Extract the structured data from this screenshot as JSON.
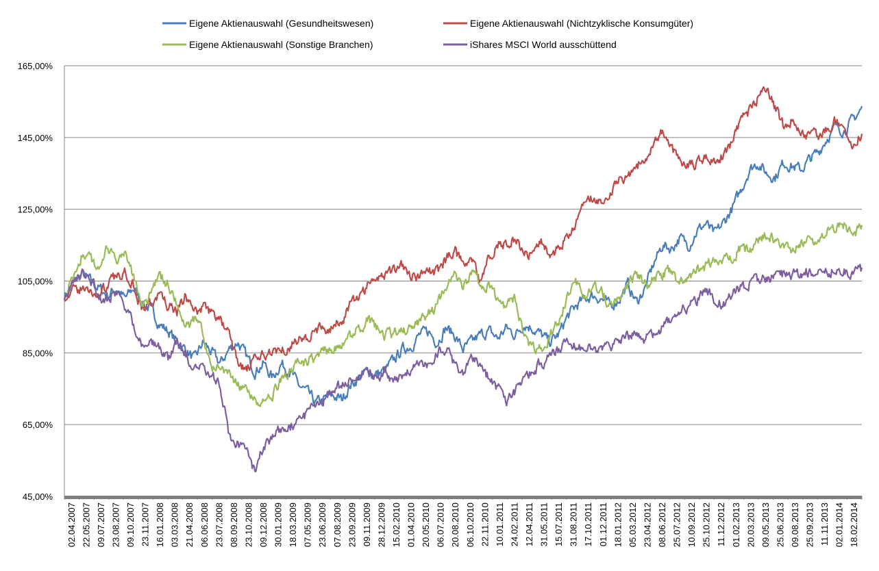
{
  "chart_data": {
    "type": "line",
    "title": "",
    "xlabel": "",
    "ylabel": "",
    "ylim": [
      45,
      165
    ],
    "y_ticks": [
      45,
      65,
      85,
      105,
      125,
      145,
      165
    ],
    "y_tick_labels": [
      "45,00%",
      "65,00%",
      "85,00%",
      "105,00%",
      "125,00%",
      "145,00%",
      "165,00%"
    ],
    "grid": true,
    "legend_position": "top",
    "x_ticks": [
      "02.04.2007",
      "22.05.2007",
      "09.07.2007",
      "23.08.2007",
      "09.10.2007",
      "23.11.2007",
      "16.01.2008",
      "03.03.2008",
      "21.04.2008",
      "06.06.2008",
      "23.07.2008",
      "08.09.2008",
      "23.10.2008",
      "09.12.2008",
      "30.01.2009",
      "18.03.2009",
      "07.05.2009",
      "23.06.2009",
      "07.08.2009",
      "23.09.2009",
      "09.11.2009",
      "28.12.2009",
      "15.02.2010",
      "01.04.2010",
      "20.05.2010",
      "06.07.2010",
      "20.08.2010",
      "06.10.2010",
      "22.11.2010",
      "10.01.2011",
      "24.02.2011",
      "12.04.2011",
      "31.05.2011",
      "15.07.2011",
      "31.08.2011",
      "17.10.2011",
      "01.12.2011",
      "18.01.2012",
      "05.03.2012",
      "23.04.2012",
      "08.06.2012",
      "25.07.2012",
      "10.09.2012",
      "25.10.2012",
      "11.12.2012",
      "01.02.2013",
      "20.03.2013",
      "09.05.2013",
      "25.06.2013",
      "09.08.2013",
      "25.09.2013",
      "11.11.2013",
      "02.01.2014",
      "18.02.2014"
    ],
    "series": [
      {
        "name": "Eigene Aktienauswahl (Gesundheitswesen)",
        "color": "#4a7ebb",
        "values": [
          101,
          104,
          107,
          105,
          103,
          101,
          103,
          100,
          103,
          99,
          97,
          93,
          91,
          88,
          86,
          83,
          88,
          85,
          82,
          86,
          88,
          84,
          80,
          82,
          78,
          82,
          80,
          76,
          74,
          71,
          72,
          73,
          72,
          76,
          78,
          80,
          79,
          80,
          83,
          86,
          87,
          90,
          91,
          88,
          92,
          90,
          86,
          88,
          90,
          91,
          89,
          92,
          90,
          93,
          92,
          90,
          88,
          90,
          95,
          98,
          100,
          101,
          100,
          98,
          100,
          104,
          99,
          103,
          110,
          115,
          114,
          117,
          115,
          119,
          121,
          118,
          121,
          125,
          130,
          136,
          138,
          135,
          134,
          138,
          137,
          136,
          139,
          141,
          145,
          148,
          147,
          150,
          153
        ]
      },
      {
        "name": "Eigene Aktienauswahl (Nichtzyklische Konsumgüter)",
        "color": "#be4b48",
        "values": [
          101,
          102,
          103,
          102,
          101,
          104,
          106,
          108,
          104,
          97,
          99,
          101,
          98,
          96,
          101,
          96,
          98,
          96,
          94,
          90,
          82,
          80,
          83,
          84,
          86,
          86,
          87,
          89,
          89,
          91,
          92,
          92,
          94,
          98,
          101,
          104,
          106,
          107,
          108,
          110,
          107,
          106,
          108,
          107,
          111,
          114,
          109,
          111,
          104,
          112,
          115,
          116,
          117,
          112,
          113,
          117,
          112,
          114,
          117,
          121,
          126,
          128,
          127,
          130,
          133,
          135,
          137,
          139,
          144,
          147,
          142,
          139,
          137,
          138,
          140,
          139,
          140,
          143,
          149,
          152,
          156,
          158,
          153,
          148,
          150,
          147,
          145,
          146,
          147,
          150,
          146,
          143,
          146
        ]
      },
      {
        "name": "Eigene Aktienauswahl (Sonstige Branchen)",
        "color": "#9bbb59",
        "values": [
          101,
          106,
          112,
          111,
          109,
          114,
          110,
          112,
          106,
          99,
          102,
          106,
          104,
          98,
          92,
          94,
          91,
          80,
          82,
          79,
          76,
          74,
          72,
          71,
          73,
          77,
          80,
          82,
          82,
          84,
          86,
          86,
          88,
          90,
          92,
          94,
          92,
          90,
          90,
          92,
          91,
          94,
          96,
          98,
          104,
          106,
          103,
          108,
          104,
          103,
          99,
          98,
          100,
          90,
          86,
          86,
          90,
          94,
          100,
          104,
          102,
          104,
          102,
          98,
          100,
          104,
          107,
          104,
          106,
          107,
          108,
          104,
          106,
          108,
          109,
          111,
          110,
          112,
          114,
          113,
          116,
          118,
          116,
          113,
          114,
          115,
          116,
          117,
          119,
          120,
          121,
          118,
          120
        ]
      },
      {
        "name": "iShares MSCI World ausschüttend",
        "color": "#7d5fa0",
        "values": [
          101,
          104,
          107,
          105,
          101,
          100,
          102,
          98,
          93,
          87,
          88,
          86,
          83,
          88,
          85,
          80,
          81,
          78,
          76,
          62,
          60,
          57,
          52,
          59,
          62,
          64,
          64,
          66,
          68,
          70,
          72,
          74,
          76,
          78,
          79,
          80,
          78,
          80,
          77,
          78,
          80,
          82,
          82,
          85,
          86,
          82,
          80,
          84,
          81,
          78,
          75,
          72,
          74,
          78,
          80,
          82,
          84,
          86,
          87,
          87,
          86,
          85,
          86,
          87,
          88,
          90,
          91,
          89,
          90,
          92,
          94,
          96,
          98,
          100,
          103,
          100,
          98,
          101,
          103,
          104,
          105,
          106,
          106,
          107,
          107,
          107,
          108,
          107,
          108,
          108,
          108,
          107,
          108
        ]
      }
    ],
    "legend_items": [
      "Eigene Aktienauswahl (Gesundheitswesen)",
      "Eigene Aktienauswahl (Nichtzyklische Konsumgüter)",
      "Eigene Aktienauswahl (Sonstige Branchen)",
      "iShares MSCI World ausschüttend"
    ]
  }
}
